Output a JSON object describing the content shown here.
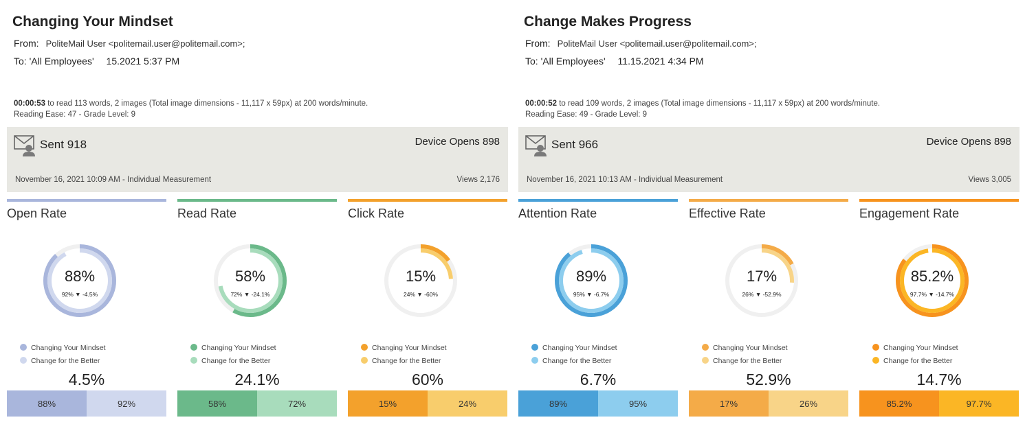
{
  "emails": [
    {
      "title": "Changing Your Mindset",
      "from_label": "From:",
      "from_value": "PoliteMail User <politemail.user@politemail.com>;",
      "to_label": "To:",
      "to_value": "'All Employees'",
      "to_date": "15.2021 5:37 PM",
      "read_time": "00:00:53",
      "read_text": " to read 113 words, 2 images (Total image dimensions - 11,117 x 59px) at 200 words/minute.",
      "ease": "Reading Ease: 47 - Grade Level: 9",
      "sent": "Sent 918",
      "device_opens": "Device Opens 898",
      "measurement": "November 16, 2021 10:09 AM - Individual Measurement",
      "views": "Views 2,176"
    },
    {
      "title": "Change Makes Progress",
      "from_label": "From:",
      "from_value": "PoliteMail User <politemail.user@politemail.com>;",
      "to_label": "To:",
      "to_value": "'All Employees'",
      "to_date": "11.15.2021 4:34 PM",
      "read_time": "00:00:52",
      "read_text": " to read 109 words, 2 images (Total image dimensions - 11,117 x 59px) at 200 words/minute.",
      "ease": "Reading Ease: 49 - Grade Level: 9",
      "sent": "Sent 966",
      "device_opens": "Device Opens 898",
      "measurement": "November 16, 2021 10:13 AM - Individual Measurement",
      "views": "Views 3,005"
    }
  ],
  "icons": {
    "envelope": "envelope-user-icon",
    "legend_dot": "legend-dot-icon"
  },
  "cards": [
    {
      "title": "Open Rate",
      "pct": "88%",
      "sub": "92% ▼ -4.5%",
      "outer": 88,
      "inner": 92,
      "legend1": "Changing Your Mindset",
      "legend2": "Change for the Better",
      "diff": "4.5%",
      "bar1": "88%",
      "bar2": "92%",
      "topbar": "#a9b6dc",
      "c1": "#a9b6dc",
      "c2": "#d0d8ee"
    },
    {
      "title": "Read Rate",
      "pct": "58%",
      "sub": "72% ▼ -24.1%",
      "outer": 58,
      "inner": 72,
      "legend1": "Changing Your Mindset",
      "legend2": "Change for the Better",
      "diff": "24.1%",
      "bar1": "58%",
      "bar2": "72%",
      "topbar": "#6bb98a",
      "c1": "#6bb98a",
      "c2": "#a8dcbc"
    },
    {
      "title": "Click Rate",
      "pct": "15%",
      "sub": "24% ▼ -60%",
      "outer": 15,
      "inner": 24,
      "legend1": "Changing Your Mindset",
      "legend2": "Change for the Better",
      "diff": "60%",
      "bar1": "15%",
      "bar2": "24%",
      "topbar": "#f3a12c",
      "c1": "#f3a12c",
      "c2": "#f8cd6c"
    },
    {
      "title": "Attention Rate",
      "pct": "89%",
      "sub": "95% ▼ -6.7%",
      "outer": 89,
      "inner": 95,
      "legend1": "Changing Your Mindset",
      "legend2": "Change for the Better",
      "diff": "6.7%",
      "bar1": "89%",
      "bar2": "95%",
      "topbar": "#4aa1d8",
      "c1": "#4aa1d8",
      "c2": "#8dcdee"
    },
    {
      "title": "Effective Rate",
      "pct": "17%",
      "sub": "26% ▼ -52.9%",
      "outer": 17,
      "inner": 26,
      "legend1": "Changing Your Mindset",
      "legend2": "Change for the Better",
      "diff": "52.9%",
      "bar1": "17%",
      "bar2": "26%",
      "topbar": "#f4ab48",
      "c1": "#f4ab48",
      "c2": "#f8d488"
    },
    {
      "title": "Engagement Rate",
      "pct": "85.2%",
      "sub": "97.7% ▼ -14.7%",
      "outer": 85.2,
      "inner": 97.7,
      "legend1": "Changing Your Mindset",
      "legend2": "Change for the Better",
      "diff": "14.7%",
      "bar1": "85.2%",
      "bar2": "97.7%",
      "topbar": "#f7931e",
      "c1": "#f7931e",
      "c2": "#fbb625"
    }
  ]
}
